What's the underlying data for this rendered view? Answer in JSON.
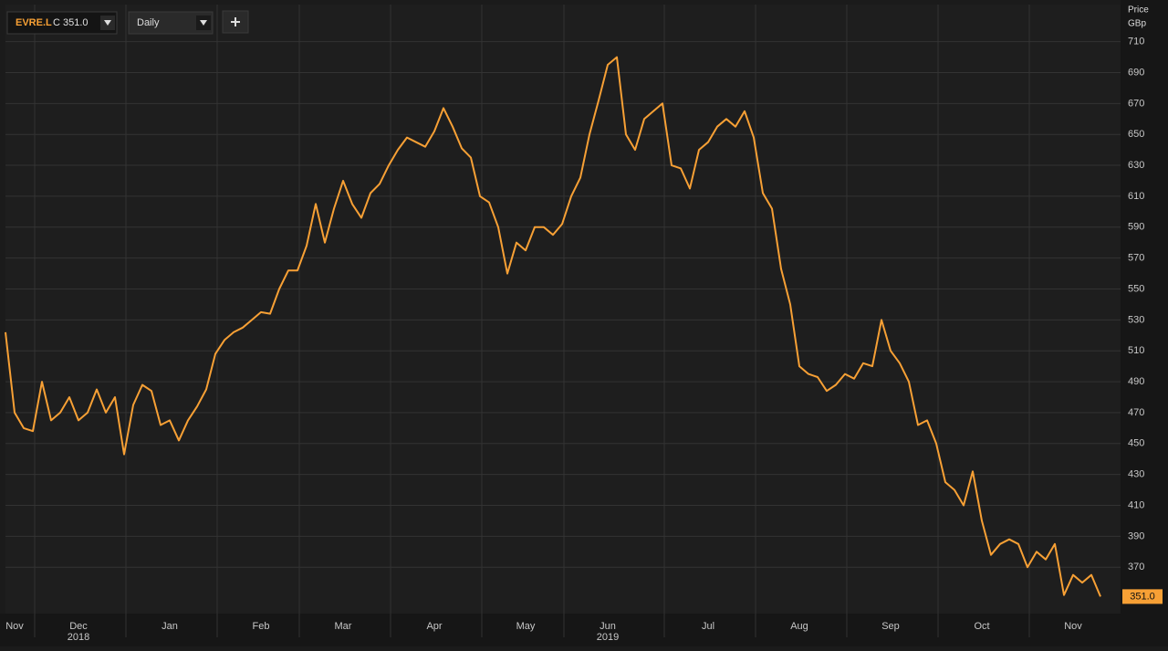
{
  "header": {
    "symbol": "EVRE.L",
    "close": "C 351.0",
    "interval": "Daily"
  },
  "chart_data": {
    "type": "line",
    "y_axis_title": "Price",
    "y_axis_unit": "GBp",
    "categories": [
      null,
      "Nov",
      null,
      null,
      null,
      null,
      null,
      null,
      "Dec",
      null,
      null,
      null,
      null,
      null,
      null,
      null,
      null,
      null,
      "Jan",
      null,
      null,
      null,
      null,
      null,
      null,
      null,
      null,
      null,
      "Feb",
      null,
      null,
      null,
      null,
      null,
      null,
      null,
      null,
      "Mar",
      null,
      null,
      null,
      null,
      null,
      null,
      null,
      null,
      null,
      "Apr",
      null,
      null,
      null,
      null,
      null,
      null,
      null,
      null,
      null,
      "May",
      null,
      null,
      null,
      null,
      null,
      null,
      null,
      null,
      "Jun",
      null,
      null,
      null,
      null,
      null,
      null,
      null,
      null,
      null,
      null,
      "Jul",
      null,
      null,
      null,
      null,
      null,
      null,
      null,
      null,
      null,
      "Aug",
      null,
      null,
      null,
      null,
      null,
      null,
      null,
      null,
      null,
      "Sep",
      null,
      null,
      null,
      null,
      null,
      null,
      null,
      null,
      null,
      "Oct",
      null,
      null,
      null,
      null,
      null,
      null,
      null,
      null,
      null,
      "Nov",
      null,
      null,
      null
    ],
    "year_categories": [
      null,
      null,
      null,
      null,
      null,
      null,
      null,
      null,
      "2018",
      null,
      null,
      null,
      null,
      null,
      null,
      null,
      null,
      null,
      null,
      null,
      null,
      null,
      null,
      null,
      null,
      null,
      null,
      null,
      null,
      null,
      null,
      null,
      null,
      null,
      null,
      null,
      null,
      null,
      null,
      null,
      null,
      null,
      null,
      null,
      null,
      null,
      null,
      null,
      null,
      null,
      null,
      null,
      null,
      null,
      null,
      null,
      null,
      null,
      null,
      null,
      null,
      null,
      null,
      null,
      null,
      null,
      "2019",
      null,
      null,
      null,
      null,
      null,
      null,
      null,
      null,
      null,
      null,
      null,
      null,
      null,
      null,
      null,
      null,
      null,
      null,
      null,
      null,
      null,
      null,
      null,
      null,
      null,
      null,
      null,
      null,
      null,
      null,
      null,
      null,
      null,
      null,
      null,
      null,
      null,
      null,
      null,
      null,
      null,
      null,
      null,
      null,
      null,
      null,
      null,
      null,
      null,
      null,
      null,
      null,
      null,
      null
    ],
    "series": [
      {
        "name": "EVRE.L",
        "color": "#f7a035",
        "values": [
          522,
          470,
          460,
          458,
          490,
          465,
          470,
          480,
          465,
          470,
          485,
          470,
          480,
          443,
          475,
          488,
          484,
          462,
          465,
          452,
          465,
          474,
          485,
          508,
          517,
          522,
          525,
          530,
          535,
          534,
          550,
          562,
          562,
          578,
          605,
          580,
          602,
          620,
          605,
          596,
          612,
          618,
          630,
          640,
          648,
          645,
          642,
          652,
          667,
          655,
          641,
          635,
          610,
          606,
          590,
          560,
          580,
          575,
          590,
          590,
          585,
          592,
          610,
          622,
          650,
          672,
          695,
          700,
          650,
          640,
          660,
          665,
          670,
          630,
          628,
          615,
          640,
          645,
          655,
          660,
          655,
          665,
          648,
          612,
          602,
          563,
          540,
          500,
          495,
          493,
          484,
          488,
          495,
          492,
          502,
          500,
          530,
          510,
          502,
          490,
          462,
          465,
          450,
          425,
          420,
          410,
          432,
          400,
          378,
          385,
          388,
          385,
          370,
          380,
          375,
          385,
          352,
          365,
          360,
          365,
          351
        ]
      }
    ],
    "last_label": "351.0",
    "ylim": [
      340,
      734
    ],
    "yticks": [
      370,
      390,
      410,
      430,
      450,
      470,
      490,
      510,
      530,
      550,
      570,
      590,
      610,
      630,
      650,
      670,
      690,
      710
    ],
    "grid": true
  }
}
